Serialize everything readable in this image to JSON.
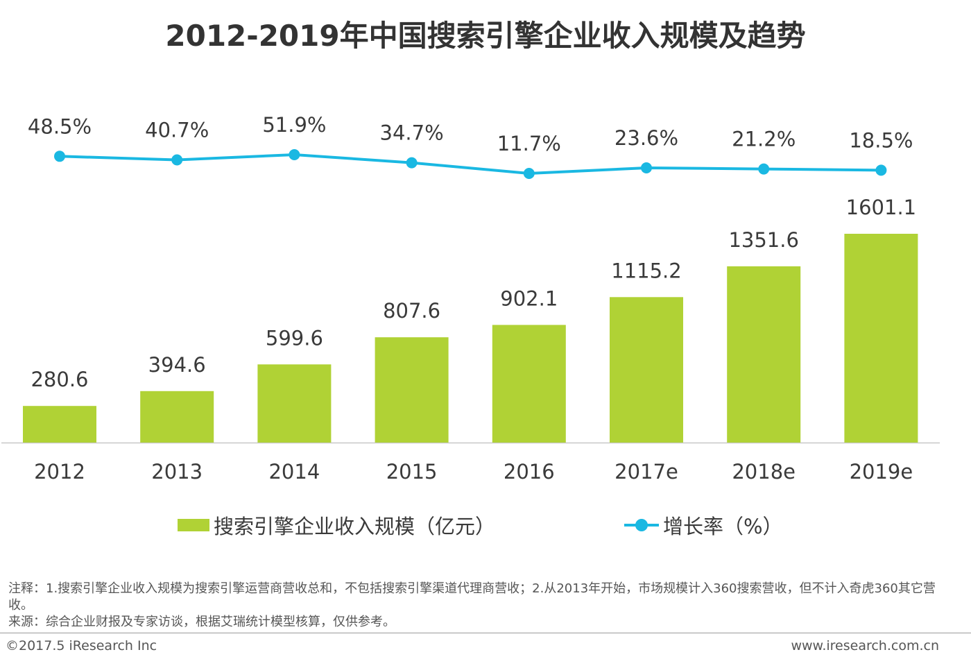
{
  "title": "2012-2019年中国搜索引擎企业收入规模及趋势",
  "colors": {
    "bar": "#b0d235",
    "line": "#1ab8e2"
  },
  "chart_data": {
    "type": "bar",
    "categories": [
      "2012",
      "2013",
      "2014",
      "2015",
      "2016",
      "2017e",
      "2018e",
      "2019e"
    ],
    "series": [
      {
        "name": "搜索引擎企业收入规模（亿元）",
        "type": "bar",
        "values": [
          280.6,
          394.6,
          599.6,
          807.6,
          902.1,
          1115.2,
          1351.6,
          1601.1
        ],
        "labels": [
          "280.6",
          "394.6",
          "599.6",
          "807.6",
          "902.1",
          "1115.2",
          "1351.6",
          "1601.1"
        ]
      },
      {
        "name": "增长率（%）",
        "type": "line",
        "values": [
          48.5,
          40.7,
          51.9,
          34.7,
          11.7,
          23.6,
          21.2,
          18.5
        ],
        "labels": [
          "48.5%",
          "40.7%",
          "51.9%",
          "34.7%",
          "11.7%",
          "23.6%",
          "21.2%",
          "18.5%"
        ]
      }
    ],
    "legend_position": "bottom",
    "grid": false
  },
  "legend": {
    "bar_label": "搜索引擎企业收入规模（亿元）",
    "line_label": "增长率（%）"
  },
  "notes": {
    "line1": "注释：1.搜索引擎企业收入规模为搜索引擎运营商营收总和，不包括搜索引擎渠道代理商营收；2.从2013年开始，市场规模计入360搜索营收，但不计入奇虎360其它营收。",
    "line2": "来源：综合企业财报及专家访谈，根据艾瑞统计模型核算，仅供参考。"
  },
  "footer": {
    "left": "©2017.5 iResearch Inc",
    "right": "www.iresearch.com.cn"
  }
}
